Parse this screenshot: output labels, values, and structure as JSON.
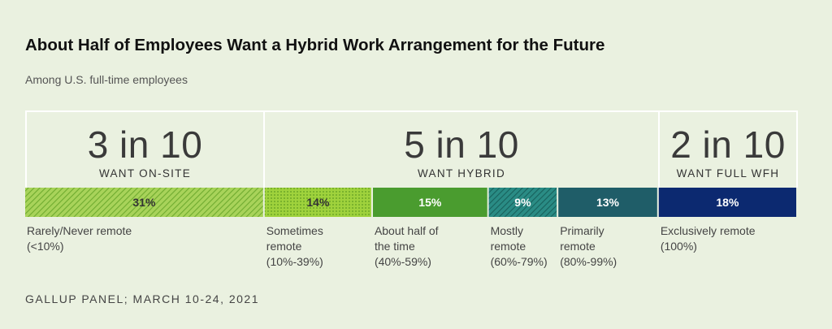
{
  "title": "About Half of Employees Want a Hybrid Work Arrangement for the Future",
  "subtitle": "Among U.S. full-time employees",
  "source": "GALLUP PANEL; MARCH 10-24, 2021",
  "groups": [
    {
      "big": "3 in 10",
      "small": "WANT ON-SITE"
    },
    {
      "big": "5 in 10",
      "small": "WANT HYBRID"
    },
    {
      "big": "2 in 10",
      "small": "WANT FULL WFH"
    }
  ],
  "chart_data": {
    "type": "bar",
    "orientation": "horizontal-stacked",
    "unit": "%",
    "categories": [
      "Rarely/Never remote\n(<10%)",
      "Sometimes\nremote\n(10%-39%)",
      "About half of\nthe time\n(40%-59%)",
      "Mostly\nremote\n(60%-79%)",
      "Primarily\nremote\n(80%-99%)",
      "Exclusively remote\n(100%)"
    ],
    "values": [
      31,
      14,
      15,
      9,
      13,
      18
    ],
    "value_labels": [
      "31%",
      "14%",
      "15%",
      "9%",
      "13%",
      "18%"
    ],
    "colors": [
      "#8dc63f",
      "#8dc63f",
      "#4a9c2f",
      "#1f7c76",
      "#1f5d68",
      "#0c2970"
    ],
    "patterns": [
      "diagonal-stripes",
      "dots",
      "solid",
      "diagonal-stripes",
      "solid",
      "solid"
    ],
    "label_colors": [
      "#333333",
      "#333333",
      "#ffffff",
      "#ffffff",
      "#ffffff",
      "#ffffff"
    ]
  }
}
